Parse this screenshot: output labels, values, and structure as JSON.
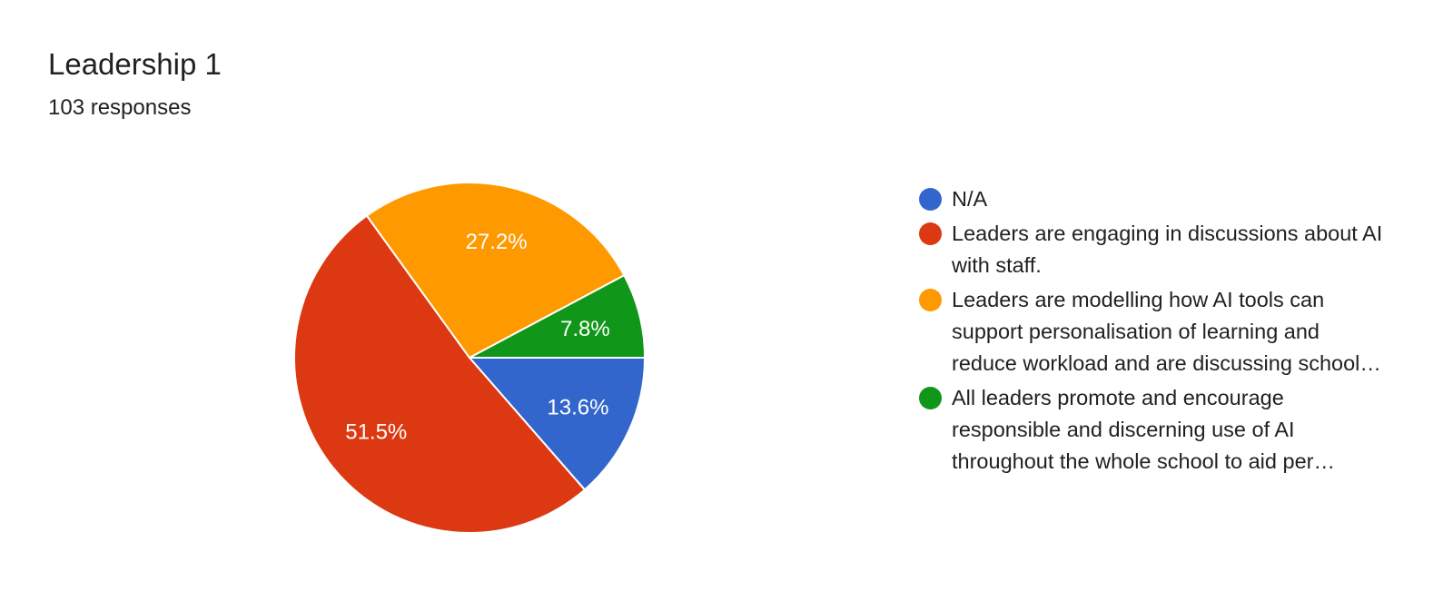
{
  "header": {
    "title": "Leadership 1",
    "responses": "103 responses"
  },
  "chart_data": {
    "type": "pie",
    "title": "Leadership 1",
    "subtitle": "103 responses",
    "legend_position": "right",
    "slices": [
      {
        "label": "N/A",
        "value": 13.6,
        "display": "13.6%",
        "color": "#3366cc"
      },
      {
        "label": "Leaders are engaging in discussions about AI with staff.",
        "value": 51.5,
        "display": "51.5%",
        "color": "#dc3912"
      },
      {
        "label": "Leaders are modelling how AI tools can support personalisation of learning and reduce workload and are discussing school-wode aproaches.",
        "value": 27.2,
        "display": "27.2%",
        "color": "#ff9900"
      },
      {
        "label": "All leaders promote and encourage responsible and discerning use of AI throughout the whole school to aid per…",
        "value": 7.8,
        "display": "7.8%",
        "color": "#109618"
      }
    ]
  }
}
